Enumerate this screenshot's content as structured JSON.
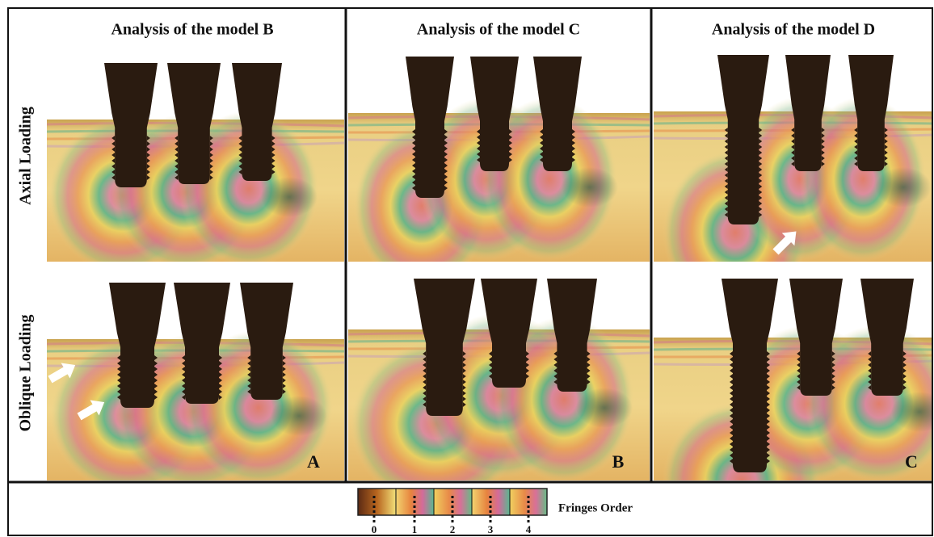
{
  "column_titles": [
    "Analysis of the model B",
    "Analysis of the model C",
    "Analysis of the model D"
  ],
  "row_labels": [
    "Axial Loading",
    "Oblique Loading"
  ],
  "panel_letters": [
    "A",
    "B",
    "C"
  ],
  "legend": {
    "title": "Fringes Order",
    "ticks": [
      "0",
      "1",
      "2",
      "3",
      "4"
    ]
  }
}
